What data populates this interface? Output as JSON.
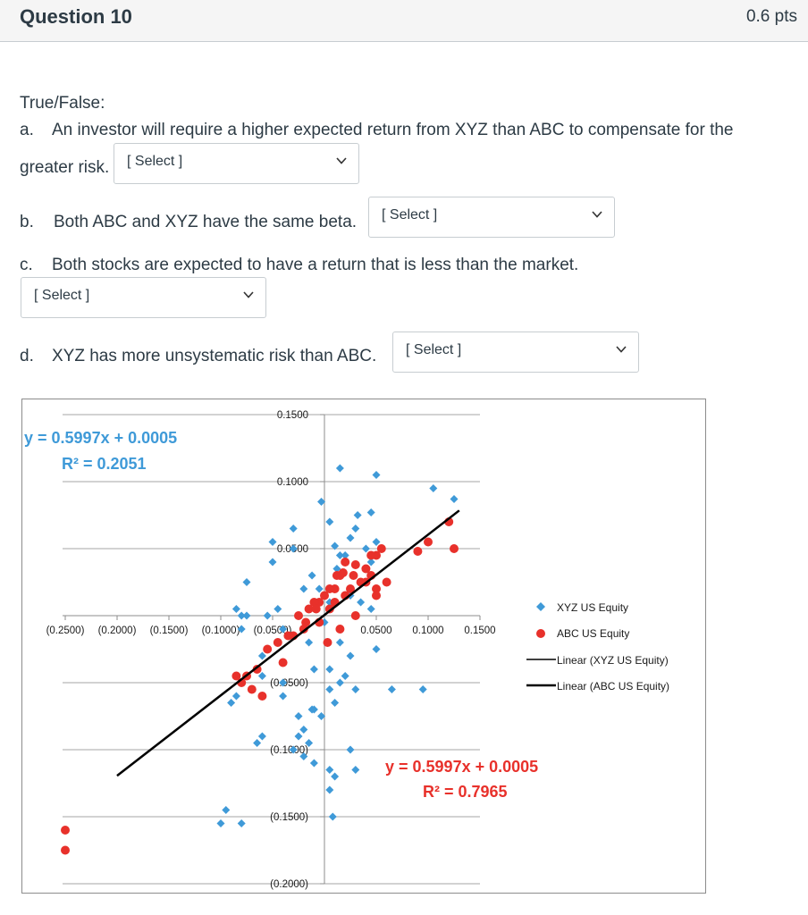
{
  "question": {
    "title": "Question 10",
    "points": "0.6 pts"
  },
  "intro": "True/False:",
  "items": [
    {
      "letter": "a.",
      "text": "An investor will require a higher expected return from XYZ than ABC to compensate for the",
      "text_cont": "greater risk.",
      "select": "[ Select ]"
    },
    {
      "letter": "b.",
      "text": "Both ABC and XYZ have the same beta.",
      "select": "[ Select ]"
    },
    {
      "letter": "c.",
      "text": "Both stocks are expected to have a return that is less than the market.",
      "select": "[ Select ]"
    },
    {
      "letter": "d.",
      "text": "XYZ has more unsystematic risk than ABC.",
      "select": "[ Select ]"
    }
  ],
  "chart_data": {
    "type": "scatter",
    "x_ticks": [
      "(0.2500)",
      "(0.2000)",
      "(0.1500)",
      "(0.1000)",
      "(0.0500)",
      "0.0500",
      "0.1000",
      "0.1500"
    ],
    "y_ticks": [
      "0.1500",
      "0.1000",
      "0.0500",
      "(0.0500)",
      "(0.1000)",
      "(0.1500)",
      "(0.2000)"
    ],
    "xlim": [
      -0.25,
      0.15
    ],
    "ylim": [
      -0.2,
      0.15
    ],
    "grid": "horizontal",
    "legend_position": "right",
    "legend": [
      "XYZ US Equity",
      "ABC US Equity",
      "Linear (XYZ US Equity)",
      "Linear (ABC US Equity)"
    ],
    "annotations": {
      "xyz_equation": "y = 0.5997x + 0.0005",
      "xyz_r2": "R² = 0.2051",
      "abc_equation": "y = 0.5997x + 0.0005",
      "abc_r2": "R² = 0.7965"
    },
    "colors": {
      "xyz": "#3f9ad8",
      "abc": "#e8312b",
      "xyz_trend": "#000000",
      "abc_trend": "#000000",
      "xyz_annotation": "#3f9ad8",
      "abc_annotation": "#e8312b"
    },
    "trendline": {
      "slope": 0.5997,
      "intercept": 0.0005,
      "x_range": [
        -0.2,
        0.13
      ]
    },
    "series": [
      {
        "name": "XYZ US Equity",
        "marker": "diamond",
        "x": [
          0.015,
          0.05,
          0.105,
          0.125,
          -0.003,
          0.032,
          0.045,
          0.005,
          -0.03,
          0.03,
          0.05,
          0.025,
          -0.05,
          -0.03,
          0.01,
          0.015,
          0.04,
          0.02,
          0.045,
          -0.075,
          -0.05,
          -0.08,
          -0.085,
          -0.08,
          0.065,
          0.095,
          -0.06,
          -0.04,
          0.015,
          0.005,
          0.03,
          -0.09,
          -0.085,
          -0.012,
          -0.003,
          0.01,
          0.045,
          0.05,
          -0.02,
          -0.025,
          -0.015,
          -0.06,
          -0.065,
          -0.03,
          -0.02,
          -0.01,
          0.005,
          0.01,
          0.025,
          0.03,
          0.005,
          -0.01,
          -0.025,
          -0.04,
          -0.06,
          -0.075,
          0.005,
          0.02,
          -0.01,
          0.008,
          -0.08,
          -0.04,
          -0.015,
          -0.005,
          0.012,
          -0.25,
          -0.095,
          -0.1,
          0.025,
          -0.012,
          -0.02,
          0.005,
          0.0,
          0.035,
          -0.045,
          -0.055,
          0.015,
          0.025
        ],
        "y": [
          0.11,
          0.105,
          0.095,
          0.087,
          0.085,
          0.075,
          0.077,
          0.07,
          0.065,
          0.065,
          0.055,
          0.058,
          0.055,
          0.05,
          0.052,
          0.045,
          0.05,
          0.045,
          0.04,
          0.025,
          0.04,
          0.0,
          0.005,
          -0.01,
          -0.055,
          -0.055,
          -0.045,
          -0.05,
          -0.05,
          -0.055,
          -0.055,
          -0.065,
          -0.06,
          -0.07,
          -0.075,
          -0.065,
          0.005,
          -0.025,
          -0.085,
          -0.09,
          -0.095,
          -0.09,
          -0.095,
          -0.1,
          -0.105,
          -0.11,
          -0.115,
          -0.12,
          -0.1,
          -0.115,
          -0.13,
          -0.07,
          -0.075,
          -0.06,
          -0.03,
          0.0,
          -0.04,
          -0.045,
          -0.04,
          -0.15,
          -0.155,
          -0.01,
          -0.02,
          0.02,
          0.035,
          -0.16,
          -0.145,
          -0.155,
          0.015,
          0.03,
          0.02,
          0.01,
          -0.005,
          0.01,
          0.005,
          0.0,
          -0.02,
          -0.03
        ]
      },
      {
        "name": "ABC US Equity",
        "marker": "circle",
        "x": [
          0.12,
          0.125,
          0.09,
          0.1,
          0.055,
          0.05,
          0.045,
          0.04,
          0.03,
          0.02,
          0.01,
          0.005,
          -0.005,
          -0.015,
          -0.025,
          -0.035,
          0.035,
          0.02,
          0.015,
          0.005,
          -0.005,
          -0.01,
          0.0,
          0.01,
          0.025,
          0.04,
          0.05,
          0.06,
          -0.02,
          -0.03,
          -0.045,
          -0.055,
          -0.065,
          -0.075,
          -0.08,
          -0.085,
          -0.07,
          -0.06,
          -0.04,
          -0.25,
          -0.25,
          0.028,
          0.018,
          -0.008,
          -0.018,
          0.012,
          0.03,
          0.045,
          0.05,
          0.015,
          0.003
        ],
        "y": [
          0.07,
          0.05,
          0.048,
          0.055,
          0.05,
          0.045,
          0.045,
          0.035,
          0.038,
          0.04,
          0.02,
          0.02,
          0.01,
          0.005,
          0.0,
          -0.015,
          0.025,
          0.015,
          0.03,
          0.005,
          -0.005,
          0.01,
          0.015,
          0.01,
          0.02,
          0.025,
          0.02,
          0.025,
          -0.01,
          -0.015,
          -0.02,
          -0.025,
          -0.04,
          -0.045,
          -0.05,
          -0.045,
          -0.055,
          -0.06,
          -0.035,
          -0.175,
          -0.16,
          0.03,
          0.032,
          0.005,
          -0.005,
          0.03,
          0.0,
          0.03,
          0.015,
          -0.01,
          -0.02
        ]
      }
    ]
  }
}
